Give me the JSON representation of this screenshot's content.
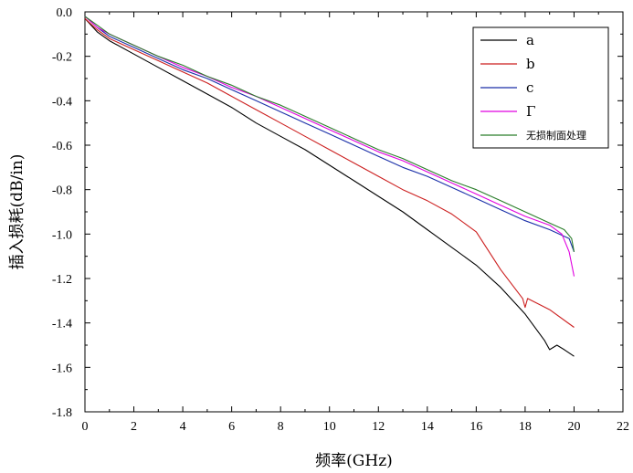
{
  "chart_data": {
    "type": "line",
    "title": "",
    "xlabel": "频率(GHz)",
    "ylabel": "插入损耗(dB/in)",
    "xlim": [
      0,
      22
    ],
    "ylim": [
      -1.8,
      0.0
    ],
    "xticks": [
      0,
      2,
      4,
      6,
      8,
      10,
      12,
      14,
      16,
      18,
      20,
      22
    ],
    "yticks": [
      0.0,
      -0.2,
      -0.4,
      -0.6,
      -0.8,
      -1.0,
      -1.2,
      -1.4,
      -1.6,
      -1.8
    ],
    "xtick_labels": [
      "0",
      "2",
      "4",
      "6",
      "8",
      "10",
      "12",
      "14",
      "16",
      "18",
      "20",
      "22"
    ],
    "ytick_labels": [
      "0.0",
      "-0.2",
      "-0.4",
      "-0.6",
      "-0.8",
      "-1.0",
      "-1.2",
      "-1.4",
      "-1.6",
      "-1.8"
    ],
    "grid": false,
    "legend_position": "top-right",
    "series": [
      {
        "name": "a",
        "color": "#000000",
        "x": [
          0,
          0.5,
          1,
          2,
          3,
          4,
          5,
          6,
          7,
          8,
          9,
          10,
          11,
          12,
          13,
          14,
          15,
          16,
          17,
          18,
          18.8,
          19,
          19.3,
          19.6,
          20
        ],
        "y": [
          -0.03,
          -0.09,
          -0.13,
          -0.19,
          -0.25,
          -0.31,
          -0.37,
          -0.43,
          -0.5,
          -0.56,
          -0.62,
          -0.69,
          -0.76,
          -0.83,
          -0.9,
          -0.98,
          -1.06,
          -1.14,
          -1.24,
          -1.36,
          -1.48,
          -1.52,
          -1.5,
          -1.52,
          -1.55
        ]
      },
      {
        "name": "b",
        "color": "#cc1f1f",
        "x": [
          0,
          0.5,
          1,
          2,
          3,
          4,
          5,
          6,
          7,
          8,
          9,
          10,
          11,
          12,
          13,
          14,
          15,
          16,
          17,
          17.9,
          18.0,
          18.1,
          19,
          20
        ],
        "y": [
          -0.03,
          -0.08,
          -0.12,
          -0.17,
          -0.22,
          -0.27,
          -0.32,
          -0.38,
          -0.44,
          -0.5,
          -0.56,
          -0.62,
          -0.68,
          -0.74,
          -0.8,
          -0.85,
          -0.91,
          -0.99,
          -1.16,
          -1.29,
          -1.33,
          -1.29,
          -1.34,
          -1.42
        ]
      },
      {
        "name": "c",
        "color": "#1a2fa8",
        "x": [
          0,
          0.5,
          1,
          2,
          3,
          4,
          5,
          6,
          7,
          8,
          9,
          10,
          11,
          12,
          13,
          14,
          15,
          16,
          17,
          18,
          19,
          19.8,
          20
        ],
        "y": [
          -0.02,
          -0.07,
          -0.11,
          -0.16,
          -0.21,
          -0.26,
          -0.3,
          -0.35,
          -0.4,
          -0.45,
          -0.5,
          -0.55,
          -0.6,
          -0.65,
          -0.7,
          -0.74,
          -0.79,
          -0.84,
          -0.89,
          -0.94,
          -0.98,
          -1.02,
          -1.08
        ]
      },
      {
        "name": "Γ",
        "color": "#e000e0",
        "x": [
          0,
          0.5,
          1,
          2,
          3,
          4,
          5,
          6,
          7,
          8,
          9,
          10,
          11,
          12,
          13,
          14,
          15,
          16,
          17,
          18,
          19,
          19.5,
          19.8,
          20
        ],
        "y": [
          -0.02,
          -0.07,
          -0.1,
          -0.15,
          -0.2,
          -0.25,
          -0.29,
          -0.34,
          -0.38,
          -0.43,
          -0.48,
          -0.53,
          -0.58,
          -0.63,
          -0.67,
          -0.72,
          -0.77,
          -0.82,
          -0.87,
          -0.92,
          -0.96,
          -1.0,
          -1.08,
          -1.19
        ]
      },
      {
        "name": "无损制面处理",
        "color": "#2a7d2a",
        "x": [
          0,
          0.5,
          1,
          2,
          3,
          4,
          5,
          6,
          7,
          8,
          9,
          10,
          11,
          12,
          13,
          14,
          15,
          16,
          17,
          18,
          19,
          19.6,
          19.9,
          20
        ],
        "y": [
          -0.02,
          -0.06,
          -0.1,
          -0.15,
          -0.2,
          -0.24,
          -0.29,
          -0.33,
          -0.38,
          -0.42,
          -0.47,
          -0.52,
          -0.57,
          -0.62,
          -0.66,
          -0.71,
          -0.76,
          -0.8,
          -0.85,
          -0.9,
          -0.95,
          -0.98,
          -1.02,
          -1.08
        ]
      }
    ]
  }
}
